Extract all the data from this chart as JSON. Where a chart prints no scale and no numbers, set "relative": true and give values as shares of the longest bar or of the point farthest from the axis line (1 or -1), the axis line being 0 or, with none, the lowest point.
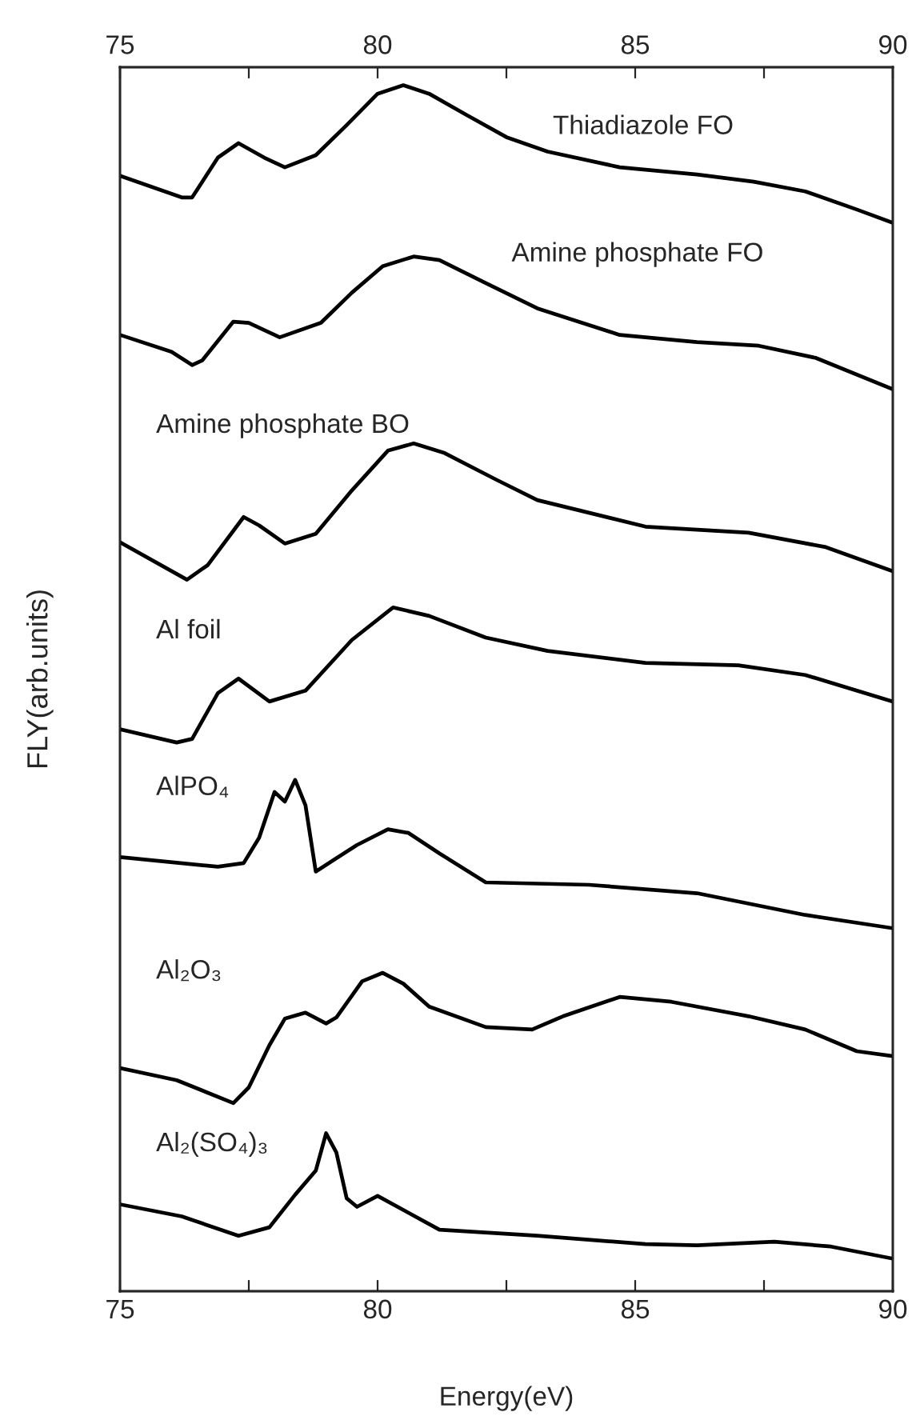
{
  "chart_data": {
    "type": "line",
    "relative": true,
    "xlabel": "Energy(eV)",
    "ylabel": "FLY(arb.units)",
    "xlim": [
      75,
      90
    ],
    "xticks": [
      75,
      {
        "value": 77.5,
        "label": null
      },
      80,
      {
        "value": 82.5,
        "label": null
      },
      85,
      {
        "value": 87.5,
        "label": null
      },
      90
    ],
    "x2lim": [
      75,
      90
    ],
    "x2ticks": [
      75,
      {
        "value": 77.5,
        "label": null
      },
      80,
      {
        "value": 82.5,
        "label": null
      },
      85,
      {
        "value": 87.5,
        "label": null
      },
      90
    ],
    "grid": false,
    "legend": false,
    "marker": "none",
    "line_style": "solid",
    "series": [
      {
        "name": "Thiadiazole FO",
        "color": "#000000",
        "x": [
          75,
          76.2,
          76.4,
          76.9,
          77.3,
          77.8,
          78.2,
          78.8,
          79.4,
          80.0,
          80.5,
          81.0,
          81.7,
          82.5,
          83.3,
          84.7,
          86.2,
          87.3,
          88.3,
          89.3,
          90
        ],
        "values": [
          0.925,
          0.907,
          0.907,
          0.94,
          0.952,
          0.94,
          0.932,
          0.942,
          0.967,
          0.993,
          1.0,
          0.993,
          0.976,
          0.957,
          0.945,
          0.932,
          0.926,
          0.92,
          0.912,
          0.897,
          0.886
        ]
      },
      {
        "name": "Amine phosphate FO",
        "color": "#000000",
        "x": [
          75,
          76.0,
          76.4,
          76.6,
          77.2,
          77.5,
          78.1,
          78.9,
          79.5,
          80.1,
          80.7,
          81.2,
          82.1,
          83.1,
          84.7,
          86.2,
          87.4,
          88.5,
          90
        ],
        "values": [
          0.793,
          0.779,
          0.768,
          0.772,
          0.804,
          0.803,
          0.791,
          0.803,
          0.828,
          0.85,
          0.858,
          0.855,
          0.836,
          0.815,
          0.793,
          0.787,
          0.784,
          0.774,
          0.748
        ]
      },
      {
        "name": "Amine phosphate BO",
        "color": "#000000",
        "x": [
          75,
          76.3,
          76.7,
          77.4,
          77.7,
          78.2,
          78.8,
          79.5,
          80.2,
          80.7,
          81.3,
          82.3,
          83.1,
          85.2,
          87.2,
          88.7,
          90
        ],
        "values": [
          0.621,
          0.59,
          0.602,
          0.642,
          0.635,
          0.62,
          0.628,
          0.664,
          0.697,
          0.703,
          0.695,
          0.673,
          0.656,
          0.634,
          0.629,
          0.617,
          0.597
        ]
      },
      {
        "name": "Al foil",
        "color": "#000000",
        "x": [
          75,
          76.1,
          76.4,
          76.9,
          77.3,
          77.9,
          78.6,
          79.5,
          80.3,
          81.0,
          82.1,
          83.3,
          85.2,
          87.0,
          88.3,
          90
        ],
        "values": [
          0.466,
          0.455,
          0.458,
          0.496,
          0.508,
          0.489,
          0.498,
          0.54,
          0.567,
          0.56,
          0.542,
          0.531,
          0.521,
          0.519,
          0.511,
          0.489
        ]
      },
      {
        "name": "AlPO₄",
        "color": "#000000",
        "x": [
          75,
          76.9,
          77.4,
          77.7,
          78.0,
          78.2,
          78.4,
          78.6,
          78.8,
          79.2,
          79.6,
          80.2,
          80.6,
          81.2,
          82.1,
          84.1,
          86.2,
          88.3,
          90
        ],
        "values": [
          0.36,
          0.352,
          0.355,
          0.376,
          0.414,
          0.406,
          0.424,
          0.403,
          0.348,
          0.359,
          0.37,
          0.383,
          0.38,
          0.363,
          0.339,
          0.337,
          0.33,
          0.312,
          0.301
        ]
      },
      {
        "name": "Al₂O₃",
        "color": "#000000",
        "x": [
          75,
          76.1,
          77.2,
          77.5,
          77.9,
          78.2,
          78.6,
          79.0,
          79.2,
          79.7,
          80.1,
          80.5,
          81.0,
          82.1,
          83.0,
          83.6,
          84.7,
          85.7,
          87.2,
          88.3,
          89.3,
          90
        ],
        "values": [
          0.185,
          0.175,
          0.156,
          0.169,
          0.204,
          0.226,
          0.231,
          0.222,
          0.227,
          0.257,
          0.264,
          0.255,
          0.236,
          0.219,
          0.217,
          0.228,
          0.244,
          0.24,
          0.228,
          0.217,
          0.199,
          0.195
        ]
      },
      {
        "name": "Al₂(SO₄)₃",
        "color": "#000000",
        "x": [
          75,
          76.2,
          77.3,
          77.9,
          78.4,
          78.8,
          79.0,
          79.2,
          79.4,
          79.6,
          80.0,
          80.6,
          81.2,
          83.1,
          85.2,
          86.2,
          87.7,
          88.8,
          90
        ],
        "values": [
          0.072,
          0.062,
          0.046,
          0.053,
          0.08,
          0.1,
          0.131,
          0.115,
          0.077,
          0.07,
          0.079,
          0.065,
          0.051,
          0.046,
          0.039,
          0.038,
          0.041,
          0.037,
          0.027
        ]
      }
    ]
  }
}
